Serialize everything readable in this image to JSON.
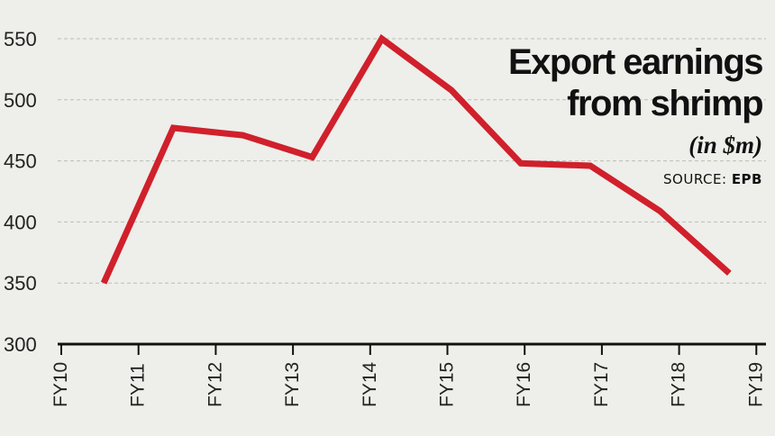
{
  "chart_data": {
    "type": "line",
    "title_line1": "Export earnings",
    "title_line2": "from shrimp",
    "unit": "(in $m)",
    "source_label": "SOURCE:",
    "source_value": "EPB",
    "categories": [
      "FY10",
      "FY11",
      "FY12",
      "FY13",
      "FY14",
      "FY15",
      "FY16",
      "FY17",
      "FY18",
      "FY19"
    ],
    "y_ticks": [
      300,
      350,
      400,
      450,
      500,
      550
    ],
    "ylim": [
      300,
      550
    ],
    "grid": "horizontal dashed",
    "series": [
      {
        "color": "#d0202b",
        "points": [
          {
            "x": 10.55,
            "y": 350
          },
          {
            "x": 11.45,
            "y": 477
          },
          {
            "x": 12.35,
            "y": 471
          },
          {
            "x": 13.25,
            "y": 453
          },
          {
            "x": 14.15,
            "y": 550
          },
          {
            "x": 15.05,
            "y": 508
          },
          {
            "x": 15.95,
            "y": 448
          },
          {
            "x": 16.85,
            "y": 446
          },
          {
            "x": 17.75,
            "y": 409
          },
          {
            "x": 18.65,
            "y": 358
          }
        ]
      }
    ]
  }
}
